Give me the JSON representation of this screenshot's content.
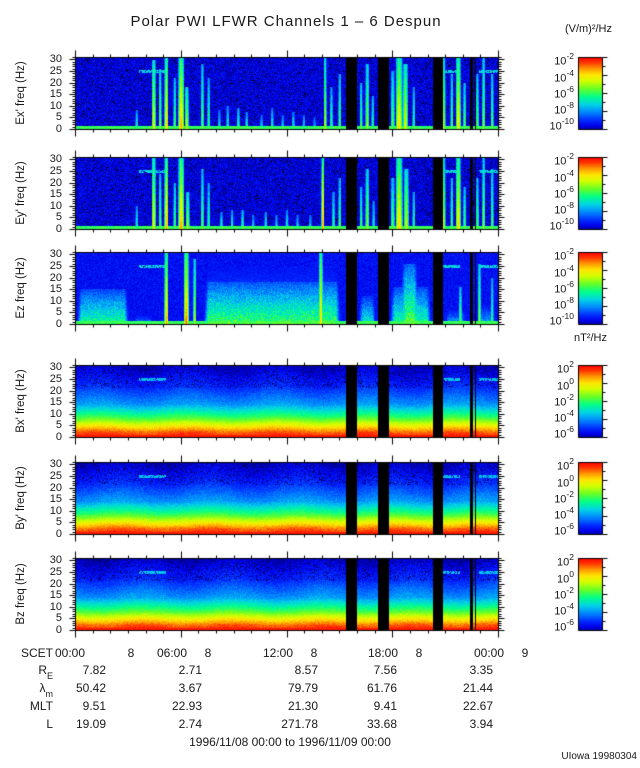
{
  "chart_data": {
    "type": "heatmap",
    "title": "Polar PWI LFWR Channels 1 – 6 Despun",
    "date_range": "1996/11/08 00:00 to 1996/11/09 00:00",
    "credit": "UIowa 19980304",
    "units": {
      "electric": "(V/m)²/Hz",
      "magnetic": "nT²/Hz"
    },
    "x_axis": {
      "label": "SCET",
      "hours": 24,
      "major_every_h": 6,
      "ticks": [
        {
          "time": "00:00",
          "day": "8"
        },
        {
          "time": "06:00",
          "day": "8"
        },
        {
          "time": "12:00",
          "day": "8"
        },
        {
          "time": "18:00",
          "day": "8"
        },
        {
          "time": "00:00",
          "day": "9"
        }
      ]
    },
    "y_axis": {
      "ticks": [
        0,
        5,
        10,
        15,
        20,
        25,
        30
      ],
      "max_hz": 31
    },
    "colorbar": {
      "electric_exponents": [
        -2,
        -4,
        -6,
        -8,
        -10
      ],
      "magnetic_exponents": [
        2,
        0,
        -2,
        -4,
        -6
      ]
    },
    "panels": [
      {
        "ylabel": "Ex' freq (Hz)",
        "kind": "electric",
        "seed": 11
      },
      {
        "ylabel": "Ey' freq (Hz)",
        "kind": "electric2",
        "seed": 87
      },
      {
        "ylabel": "Ez freq (Hz)",
        "kind": "diffuse",
        "seed": 33
      },
      {
        "ylabel": "Bx' freq (Hz)",
        "kind": "magnetic",
        "seed": 44
      },
      {
        "ylabel": "By' freq (Hz)",
        "kind": "magnetic",
        "seed": 55
      },
      {
        "ylabel": "Bz freq (Hz)",
        "kind": "magnetic",
        "seed": 66
      }
    ],
    "data_gaps_frac": [
      [
        0.64,
        0.666
      ],
      [
        0.715,
        0.74
      ],
      [
        0.846,
        0.868
      ],
      [
        0.932,
        0.9395
      ],
      [
        0.944,
        0.9465
      ]
    ],
    "interference_line": {
      "freq_hz": 25,
      "segments_frac": [
        [
          0.15,
          0.215
        ],
        [
          0.857,
          0.908
        ],
        [
          0.955,
          1.0
        ]
      ]
    },
    "features": {
      "stripes_e1": [
        [
          0.145,
          2,
          8,
          0.5
        ],
        [
          0.185,
          3,
          30,
          0.75
        ],
        [
          0.2,
          2,
          26,
          0.65
        ],
        [
          0.215,
          3,
          31,
          0.82
        ],
        [
          0.235,
          2,
          22,
          0.6
        ],
        [
          0.25,
          5,
          31,
          0.85
        ],
        [
          0.263,
          3,
          18,
          0.7
        ],
        [
          0.3,
          2,
          28,
          0.6
        ],
        [
          0.315,
          2,
          22,
          0.55
        ],
        [
          0.34,
          2,
          8,
          0.45
        ],
        [
          0.36,
          2,
          10,
          0.5
        ],
        [
          0.385,
          2,
          9,
          0.55
        ],
        [
          0.405,
          2,
          7,
          0.5
        ],
        [
          0.44,
          2,
          6,
          0.45
        ],
        [
          0.465,
          2,
          9,
          0.5
        ],
        [
          0.49,
          2,
          6,
          0.45
        ],
        [
          0.515,
          2,
          7,
          0.5
        ],
        [
          0.54,
          2,
          6,
          0.45
        ],
        [
          0.565,
          2,
          5,
          0.4
        ],
        [
          0.59,
          2,
          31,
          0.7
        ],
        [
          0.605,
          2,
          18,
          0.55
        ],
        [
          0.625,
          2,
          24,
          0.6
        ],
        [
          0.675,
          2,
          20,
          0.6
        ],
        [
          0.69,
          3,
          28,
          0.65
        ],
        [
          0.703,
          2,
          14,
          0.55
        ],
        [
          0.75,
          3,
          25,
          0.6
        ],
        [
          0.765,
          6,
          31,
          0.8
        ],
        [
          0.78,
          4,
          28,
          0.75
        ],
        [
          0.8,
          2,
          18,
          0.55
        ],
        [
          0.87,
          3,
          31,
          0.7
        ],
        [
          0.89,
          2,
          24,
          0.6
        ],
        [
          0.905,
          4,
          31,
          0.8
        ],
        [
          0.92,
          2,
          20,
          0.6
        ],
        [
          0.95,
          2,
          24,
          0.6
        ],
        [
          0.965,
          2,
          31,
          0.65
        ],
        [
          0.985,
          2,
          24,
          0.6
        ]
      ],
      "stripes_e2": [
        [
          0.145,
          2,
          10,
          0.5
        ],
        [
          0.185,
          3,
          31,
          0.78
        ],
        [
          0.2,
          2,
          24,
          0.6
        ],
        [
          0.215,
          3,
          31,
          0.85
        ],
        [
          0.235,
          2,
          20,
          0.6
        ],
        [
          0.25,
          5,
          31,
          0.85
        ],
        [
          0.265,
          3,
          16,
          0.68
        ],
        [
          0.3,
          2,
          26,
          0.6
        ],
        [
          0.315,
          2,
          20,
          0.55
        ],
        [
          0.345,
          2,
          7,
          0.5
        ],
        [
          0.37,
          2,
          8,
          0.5
        ],
        [
          0.395,
          2,
          8,
          0.55
        ],
        [
          0.42,
          2,
          6,
          0.45
        ],
        [
          0.45,
          2,
          7,
          0.5
        ],
        [
          0.475,
          2,
          6,
          0.45
        ],
        [
          0.5,
          2,
          8,
          0.5
        ],
        [
          0.525,
          2,
          6,
          0.45
        ],
        [
          0.555,
          2,
          6,
          0.45
        ],
        [
          0.585,
          2,
          31,
          0.88
        ],
        [
          0.61,
          2,
          16,
          0.55
        ],
        [
          0.625,
          2,
          22,
          0.6
        ],
        [
          0.675,
          2,
          18,
          0.6
        ],
        [
          0.69,
          3,
          26,
          0.65
        ],
        [
          0.705,
          2,
          12,
          0.5
        ],
        [
          0.75,
          3,
          22,
          0.6
        ],
        [
          0.765,
          6,
          31,
          0.82
        ],
        [
          0.782,
          4,
          26,
          0.72
        ],
        [
          0.8,
          2,
          16,
          0.55
        ],
        [
          0.87,
          3,
          31,
          0.72
        ],
        [
          0.89,
          2,
          22,
          0.6
        ],
        [
          0.905,
          4,
          31,
          0.82
        ],
        [
          0.92,
          2,
          18,
          0.6
        ],
        [
          0.95,
          2,
          22,
          0.6
        ],
        [
          0.965,
          2,
          31,
          0.65
        ],
        [
          0.985,
          2,
          26,
          0.6
        ]
      ],
      "stripes_ez": [
        [
          0.215,
          3,
          31,
          0.85
        ],
        [
          0.262,
          4,
          31,
          0.9
        ],
        [
          0.282,
          2,
          28,
          0.7
        ],
        [
          0.35,
          2,
          8,
          0.6
        ],
        [
          0.58,
          3,
          31,
          0.82
        ],
        [
          0.91,
          2,
          16,
          0.6
        ],
        [
          0.955,
          2,
          26,
          0.65
        ],
        [
          0.985,
          2,
          20,
          0.55
        ]
      ],
      "bands_ez": [
        [
          0.0,
          0.13,
          15,
          0.5
        ],
        [
          0.13,
          0.19,
          4,
          0.3
        ],
        [
          0.3,
          0.63,
          18,
          0.55
        ],
        [
          0.3,
          0.63,
          25,
          0.32
        ],
        [
          0.665,
          0.715,
          12,
          0.45
        ],
        [
          0.74,
          0.845,
          16,
          0.5
        ],
        [
          0.765,
          0.815,
          26,
          0.58
        ],
        [
          0.868,
          0.93,
          6,
          0.35
        ],
        [
          0.946,
          1.0,
          8,
          0.35
        ]
      ]
    },
    "ephemeris": {
      "row_labels": [
        {
          "label": "SCET",
          "sub": ""
        },
        {
          "label": "R",
          "sub": "E"
        },
        {
          "label": "λ",
          "sub": "m"
        },
        {
          "label": "MLT",
          "sub": ""
        },
        {
          "label": "L",
          "sub": ""
        }
      ],
      "rows": [
        {
          "name": "R_E",
          "values": [
            "7.82",
            "2.71",
            "8.57",
            "7.56",
            "3.35"
          ]
        },
        {
          "name": "lambda_m",
          "values": [
            "50.42",
            "3.67",
            "79.79",
            "61.76",
            "21.44"
          ]
        },
        {
          "name": "MLT",
          "values": [
            "9.51",
            "22.93",
            "21.30",
            "9.41",
            "22.67"
          ]
        },
        {
          "name": "L",
          "values": [
            "19.09",
            "2.74",
            "271.78",
            "33.68",
            "3.94"
          ]
        }
      ]
    }
  }
}
